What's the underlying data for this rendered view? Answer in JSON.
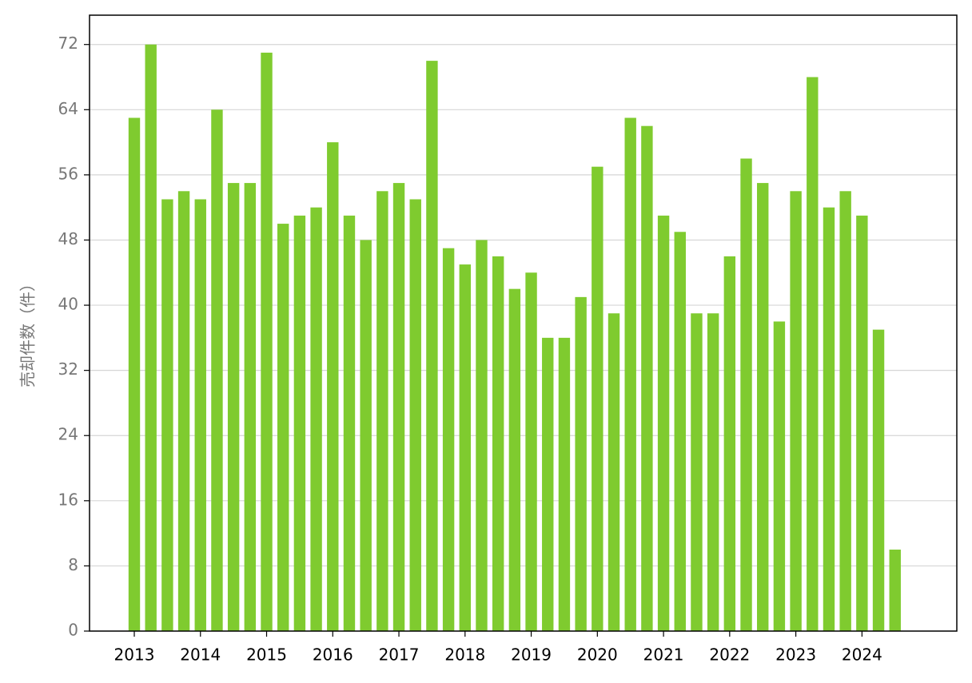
{
  "chart_data": {
    "type": "bar",
    "ylabel": "売却件数（件）",
    "categories": [
      "2013",
      null,
      null,
      null,
      "2014",
      null,
      null,
      null,
      "2015",
      null,
      null,
      null,
      "2016",
      null,
      null,
      null,
      "2017",
      null,
      null,
      null,
      "2018",
      null,
      null,
      null,
      "2019",
      null,
      null,
      null,
      "2020",
      null,
      null,
      null,
      "2021",
      null,
      null,
      null,
      "2022",
      null,
      null,
      null,
      "2023",
      null,
      null,
      null,
      "2024",
      null,
      null
    ],
    "values": [
      63,
      72,
      53,
      54,
      53,
      64,
      55,
      55,
      71,
      50,
      51,
      52,
      60,
      51,
      48,
      54,
      55,
      53,
      70,
      47,
      45,
      48,
      46,
      42,
      44,
      36,
      36,
      41,
      57,
      39,
      63,
      62,
      51,
      49,
      39,
      39,
      46,
      58,
      55,
      38,
      54,
      68,
      52,
      54,
      51,
      37,
      10
    ],
    "color": "#7fcb2f",
    "ylim": [
      0,
      75.6
    ],
    "yticks": [
      0,
      8,
      16,
      24,
      32,
      40,
      48,
      56,
      64,
      72
    ],
    "grid": true
  }
}
